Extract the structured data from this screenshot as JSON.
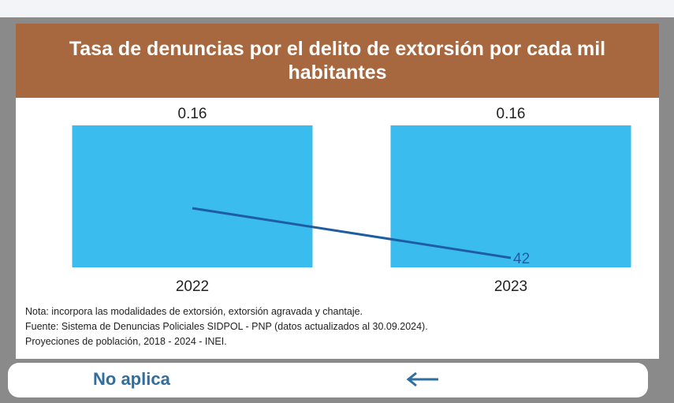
{
  "header": {
    "title": "Tasa de denuncias por el delito de extorsión por cada mil habitantes"
  },
  "chart_data": {
    "type": "bar",
    "title": "Tasa de denuncias por el delito de extorsión por cada mil habitantes",
    "categories": [
      "2022",
      "2023"
    ],
    "series": [
      {
        "type": "bar",
        "values": [
          0.16,
          0.16
        ],
        "labels": [
          "0.16",
          "0.16"
        ],
        "color": "#3bbcef"
      },
      {
        "type": "line",
        "values": [
          null,
          42
        ],
        "labels": [
          "",
          "42"
        ],
        "color": "#1f5da3"
      }
    ],
    "xlabel": "",
    "ylabel": "",
    "grid": false,
    "legend": "none"
  },
  "notes": [
    "Nota: incorpora las modalidades de extorsión, extorsión agravada y chantaje.",
    "Fuente: Sistema de Denuncias Policiales SIDPOL - PNP (datos actualizados al 30.09.2024).",
    "Proyeciones de población, 2018 - 2024 - INEI."
  ],
  "footer": {
    "label": "No aplica",
    "arrow_icon": "arrow-left-icon"
  },
  "colors": {
    "title_bg": "#a8683f",
    "bar": "#3bbcef",
    "line": "#1f5da3",
    "footer_text": "#2e6fa1"
  }
}
